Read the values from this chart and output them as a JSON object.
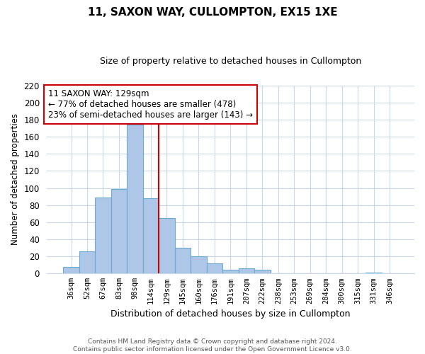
{
  "title": "11, SAXON WAY, CULLOMPTON, EX15 1XE",
  "subtitle": "Size of property relative to detached houses in Cullompton",
  "xlabel": "Distribution of detached houses by size in Cullompton",
  "ylabel": "Number of detached properties",
  "bar_labels": [
    "36sqm",
    "52sqm",
    "67sqm",
    "83sqm",
    "98sqm",
    "114sqm",
    "129sqm",
    "145sqm",
    "160sqm",
    "176sqm",
    "191sqm",
    "207sqm",
    "222sqm",
    "238sqm",
    "253sqm",
    "269sqm",
    "284sqm",
    "300sqm",
    "315sqm",
    "331sqm",
    "346sqm"
  ],
  "bar_values": [
    8,
    26,
    89,
    99,
    174,
    88,
    65,
    30,
    20,
    12,
    4,
    6,
    4,
    0,
    0,
    0,
    0,
    0,
    0,
    1,
    0
  ],
  "bar_color": "#aec6e8",
  "bar_edge_color": "#6aaad4",
  "vline_x": 5.5,
  "vline_color": "#cc0000",
  "ylim": [
    0,
    220
  ],
  "yticks": [
    0,
    20,
    40,
    60,
    80,
    100,
    120,
    140,
    160,
    180,
    200,
    220
  ],
  "annotation_title": "11 SAXON WAY: 129sqm",
  "annotation_line1": "← 77% of detached houses are smaller (478)",
  "annotation_line2": "23% of semi-detached houses are larger (143) →",
  "annotation_box_color": "#ffffff",
  "annotation_box_edge": "#cc0000",
  "footer_line1": "Contains HM Land Registry data © Crown copyright and database right 2024.",
  "footer_line2": "Contains public sector information licensed under the Open Government Licence v3.0.",
  "background_color": "#ffffff",
  "grid_color": "#c8d8e8"
}
